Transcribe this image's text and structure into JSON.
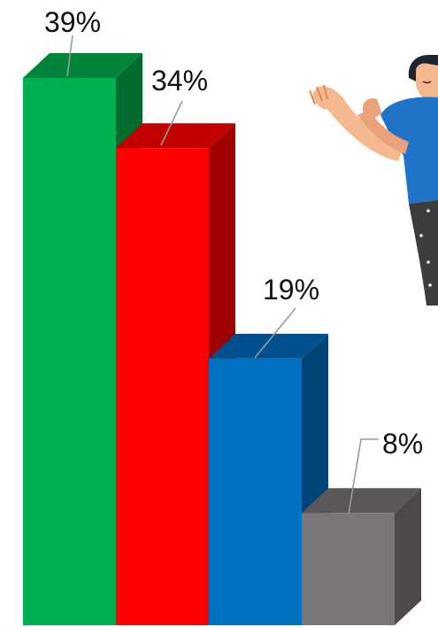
{
  "chart_data": {
    "type": "bar",
    "style": "3d",
    "values": [
      39,
      34,
      19,
      8
    ],
    "labels": [
      "39%",
      "34%",
      "19%",
      "8%"
    ],
    "ylim": [
      0,
      40
    ],
    "grid": false,
    "colors": [
      {
        "front": "#00b050",
        "top": "#00843a",
        "side": "#006b2d"
      },
      {
        "front": "#ff0000",
        "top": "#c00000",
        "side": "#a00000"
      },
      {
        "front": "#0070c0",
        "top": "#005090",
        "side": "#004377"
      },
      {
        "front": "#7a7677",
        "top": "#5b5758",
        "side": "#4d494a"
      }
    ]
  }
}
